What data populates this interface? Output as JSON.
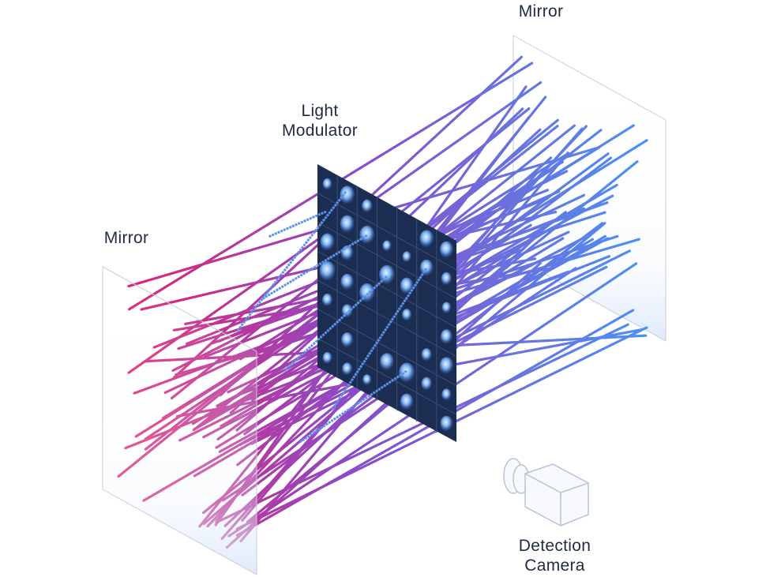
{
  "labels": {
    "mirror_right": "Mirror",
    "modulator_line1": "Light",
    "modulator_line2": "Modulator",
    "mirror_left": "Mirror",
    "camera_line1": "Detection",
    "camera_line2": "Camera"
  },
  "colors": {
    "beam_start": "#e3226f",
    "beam_mid": "#8a4cc8",
    "beam_end": "#4a92f2",
    "modulator": "#1c2d52",
    "label_text": "#1f2a44"
  }
}
